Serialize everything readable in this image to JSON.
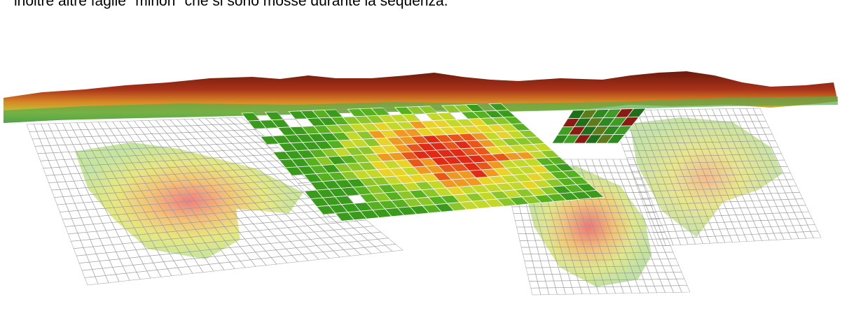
{
  "caption": "inoltre altre faglie \"minori\" che si sono mosse durante la sequenza.",
  "colors": {
    "terrain_low": "#4a9c3a",
    "terrain_mid": "#e2b02a",
    "terrain_high": "#7a1f10",
    "grid_line": "#9a9a9a",
    "slip_low": "#3aa020",
    "slip_mid": "#e8e020",
    "slip_high": "#e02010",
    "heat_base": "#c8e6a0",
    "heat_core": "#f07878"
  }
}
